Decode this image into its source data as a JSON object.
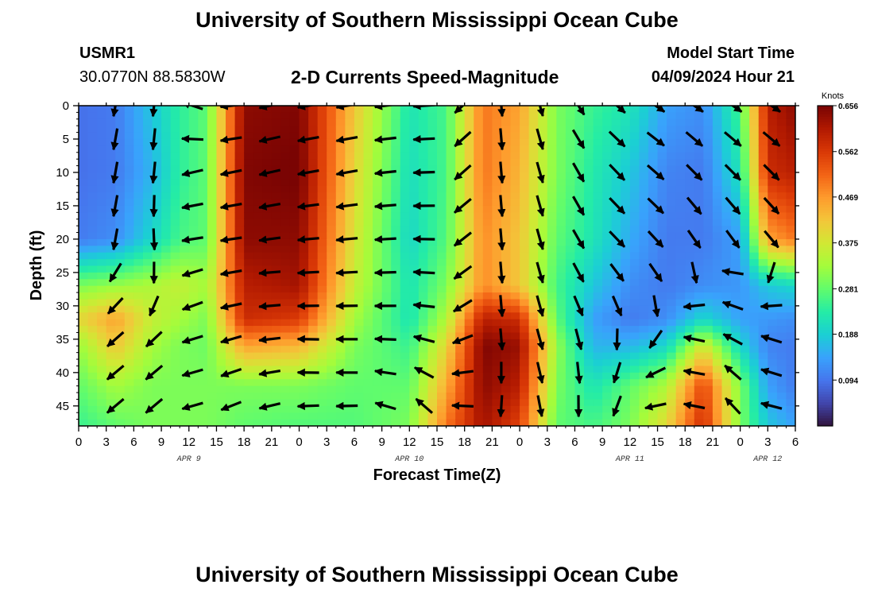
{
  "header": {
    "title": "University of Southern Mississippi Ocean Cube",
    "station": "USMR1",
    "coordinates": "30.0770N  88.5830W",
    "subtitle": "2-D Currents Speed-Magnitude",
    "model_start_label": "Model Start Time",
    "model_start_value": "04/09/2024 Hour 21"
  },
  "footer": {
    "title": "University of Southern Mississippi Ocean Cube"
  },
  "chart_data": {
    "type": "heatmap",
    "title": "2-D Currents Speed-Magnitude",
    "xlabel": "Forecast Time(Z)",
    "ylabel": "Depth (ft)",
    "x_tick_labels": [
      "0",
      "3",
      "6",
      "9",
      "12",
      "15",
      "18",
      "21",
      "0",
      "3",
      "6",
      "9",
      "12",
      "15",
      "18",
      "21",
      "0",
      "3",
      "6",
      "9",
      "12",
      "15",
      "18",
      "21",
      "0",
      "3",
      "6"
    ],
    "x_range_hours": [
      0,
      78
    ],
    "date_labels": [
      {
        "label": "APR 9",
        "hour": 12
      },
      {
        "label": "APR 10",
        "hour": 36
      },
      {
        "label": "APR 11",
        "hour": 60
      },
      {
        "label": "APR 12",
        "hour": 75
      }
    ],
    "y_ticks": [
      0,
      5,
      10,
      15,
      20,
      25,
      30,
      35,
      40,
      45
    ],
    "ylim": [
      0,
      48
    ],
    "y_inverted": true,
    "colorbar": {
      "unit": "Knots",
      "ticks": [
        0.094,
        0.188,
        0.281,
        0.375,
        0.469,
        0.562,
        0.656
      ],
      "range": [
        0,
        0.656
      ],
      "colors": [
        "#30123b",
        "#4145ab",
        "#4675ed",
        "#39a2fc",
        "#1bcfd4",
        "#24eca6",
        "#61fc6c",
        "#a4fc3b",
        "#d1e834",
        "#f3c63a",
        "#fe9b2d",
        "#f36315",
        "#d93806",
        "#b11901",
        "#7a0403"
      ]
    },
    "speed_keyframes": {
      "hours": [
        0,
        4,
        8,
        11,
        14,
        18,
        24,
        30,
        36,
        40,
        44,
        48,
        52,
        56,
        60,
        64,
        68,
        72,
        75,
        78
      ],
      "depths": [
        0,
        10,
        20,
        27,
        32,
        36,
        42,
        48
      ],
      "values_knots": [
        [
          0.09,
          0.09,
          0.1,
          0.3,
          0.4,
          0.32,
          0.28,
          0.25
        ],
        [
          0.1,
          0.1,
          0.12,
          0.32,
          0.46,
          0.42,
          0.33,
          0.28
        ],
        [
          0.18,
          0.16,
          0.2,
          0.34,
          0.36,
          0.33,
          0.3,
          0.3
        ],
        [
          0.24,
          0.24,
          0.26,
          0.36,
          0.33,
          0.3,
          0.3,
          0.3
        ],
        [
          0.28,
          0.28,
          0.28,
          0.33,
          0.3,
          0.29,
          0.3,
          0.3
        ],
        [
          0.64,
          0.65,
          0.64,
          0.6,
          0.58,
          0.46,
          0.3,
          0.28
        ],
        [
          0.65,
          0.66,
          0.64,
          0.62,
          0.56,
          0.44,
          0.3,
          0.27
        ],
        [
          0.42,
          0.4,
          0.38,
          0.36,
          0.33,
          0.3,
          0.28,
          0.27
        ],
        [
          0.22,
          0.21,
          0.2,
          0.22,
          0.22,
          0.25,
          0.28,
          0.3
        ],
        [
          0.26,
          0.26,
          0.27,
          0.3,
          0.34,
          0.4,
          0.45,
          0.5
        ],
        [
          0.5,
          0.5,
          0.48,
          0.48,
          0.6,
          0.65,
          0.64,
          0.62
        ],
        [
          0.46,
          0.44,
          0.42,
          0.42,
          0.58,
          0.63,
          0.6,
          0.55
        ],
        [
          0.3,
          0.3,
          0.28,
          0.26,
          0.28,
          0.32,
          0.3,
          0.28
        ],
        [
          0.25,
          0.23,
          0.22,
          0.18,
          0.14,
          0.16,
          0.22,
          0.26
        ],
        [
          0.22,
          0.18,
          0.15,
          0.12,
          0.1,
          0.16,
          0.28,
          0.3
        ],
        [
          0.14,
          0.11,
          0.1,
          0.1,
          0.12,
          0.2,
          0.34,
          0.4
        ],
        [
          0.12,
          0.1,
          0.1,
          0.12,
          0.2,
          0.38,
          0.55,
          0.58
        ],
        [
          0.26,
          0.22,
          0.14,
          0.13,
          0.14,
          0.2,
          0.3,
          0.3
        ],
        [
          0.6,
          0.58,
          0.46,
          0.18,
          0.13,
          0.11,
          0.14,
          0.18
        ],
        [
          0.64,
          0.6,
          0.5,
          0.2,
          0.12,
          0.1,
          0.1,
          0.14
        ]
      ]
    },
    "vector_keyframes": {
      "hours": [
        0,
        4,
        9,
        12,
        14,
        18,
        24,
        30,
        36,
        40,
        44,
        48,
        50,
        53,
        56,
        59,
        62,
        66,
        70,
        74,
        78
      ],
      "depths": [
        0,
        10,
        20,
        27,
        32,
        36,
        42,
        48
      ],
      "direction_deg_clockwise_from_east": [
        [
          100,
          100,
          100,
          135,
          135,
          140,
          140,
          140
        ],
        [
          100,
          100,
          100,
          130,
          135,
          140,
          140,
          140
        ],
        [
          95,
          95,
          85,
          85,
          125,
          140,
          140,
          140
        ],
        [
          200,
          165,
          170,
          160,
          160,
          165,
          165,
          165
        ],
        [
          190,
          175,
          175,
          160,
          160,
          160,
          160,
          160
        ],
        [
          165,
          165,
          170,
          175,
          170,
          165,
          160,
          155
        ],
        [
          170,
          170,
          175,
          178,
          180,
          182,
          180,
          175
        ],
        [
          170,
          170,
          175,
          178,
          180,
          180,
          180,
          178
        ],
        [
          175,
          177,
          178,
          180,
          180,
          185,
          200,
          220
        ],
        [
          178,
          180,
          185,
          190,
          200,
          215,
          235,
          240
        ],
        [
          85,
          85,
          85,
          85,
          85,
          85,
          90,
          95
        ],
        [
          85,
          85,
          85,
          85,
          85,
          85,
          95,
          95
        ],
        [
          75,
          75,
          75,
          75,
          75,
          75,
          78,
          80
        ],
        [
          65,
          65,
          65,
          65,
          70,
          75,
          80,
          85
        ],
        [
          50,
          55,
          55,
          60,
          70,
          80,
          95,
          100
        ],
        [
          40,
          45,
          45,
          55,
          75,
          100,
          115,
          110
        ],
        [
          35,
          40,
          45,
          55,
          85,
          120,
          160,
          170
        ],
        [
          35,
          45,
          55,
          75,
          200,
          185,
          180,
          180
        ],
        [
          35,
          45,
          55,
          210,
          190,
          205,
          225,
          230
        ],
        [
          35,
          45,
          50,
          195,
          210,
          230,
          225,
          225
        ],
        [
          35,
          45,
          50,
          45,
          65,
          80,
          85,
          85
        ]
      ]
    }
  }
}
